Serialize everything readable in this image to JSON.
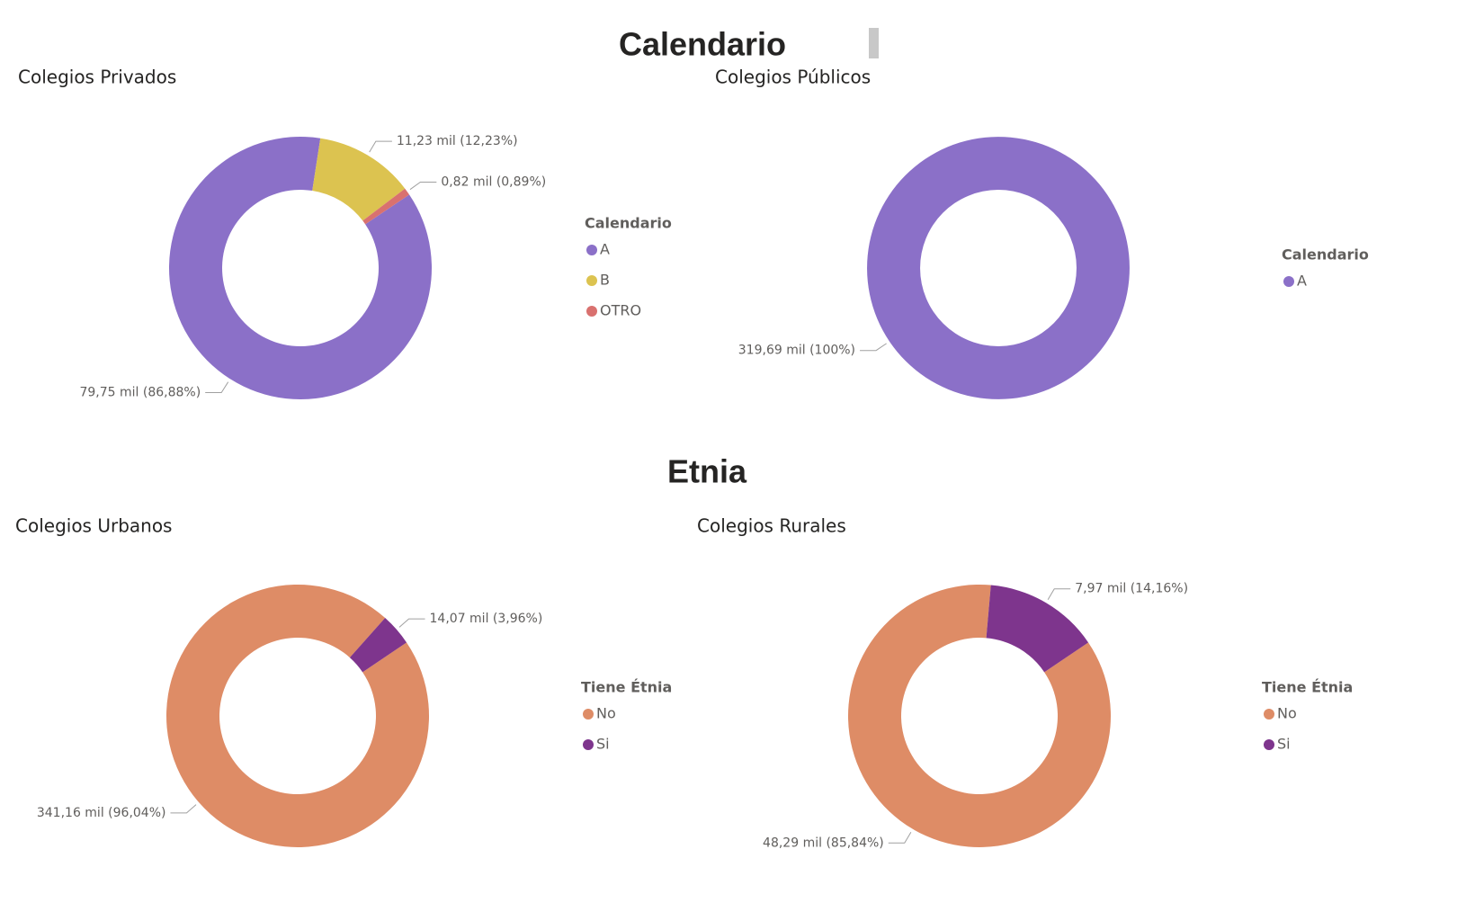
{
  "sections": [
    "Calendario",
    "Etnia"
  ],
  "chart_data": [
    {
      "type": "donut",
      "title": "Colegios Privados",
      "legend_title": "Calendario",
      "categories": [
        "A",
        "B",
        "OTRO"
      ],
      "values": [
        79.75,
        11.23,
        0.82
      ],
      "value_labels": [
        "79,75 mil (86,88%)",
        "11,23 mil (12,23%)",
        "0,82 mil (0,89%)"
      ],
      "colors": [
        "#8b70c8",
        "#dcc350",
        "#d9716f"
      ]
    },
    {
      "type": "donut",
      "title": "Colegios Públicos",
      "legend_title": "Calendario",
      "categories": [
        "A"
      ],
      "values": [
        319.69
      ],
      "value_labels": [
        "319,69 mil (100%)"
      ],
      "colors": [
        "#8b70c8"
      ]
    },
    {
      "type": "donut",
      "title": "Colegios Urbanos",
      "legend_title": "Tiene Étnia",
      "categories": [
        "No",
        "Si"
      ],
      "values": [
        341.16,
        14.07
      ],
      "value_labels": [
        "341,16 mil (96,04%)",
        "14,07 mil (3,96%)"
      ],
      "colors": [
        "#de8c66",
        "#7e358d"
      ]
    },
    {
      "type": "donut",
      "title": "Colegios Rurales",
      "legend_title": "Tiene Étnia",
      "categories": [
        "No",
        "Si"
      ],
      "values": [
        48.29,
        7.97
      ],
      "value_labels": [
        "48,29 mil (85,84%)",
        "7,97 mil (14,16%)"
      ],
      "colors": [
        "#de8c66",
        "#7e358d"
      ]
    }
  ]
}
